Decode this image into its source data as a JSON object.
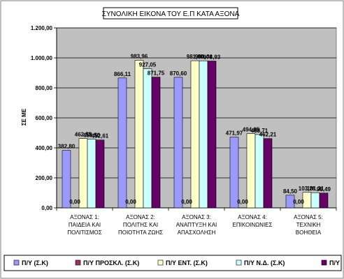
{
  "chart_data": {
    "type": "bar",
    "title": "ΣΥΝΟΛΙΚΗ ΕΙΚΟΝΑ ΤΟΥ Ε.Π ΚΑΤΑ ΑΞΟΝΑ",
    "ylabel": "ΣΕ ΜΕ",
    "xlabel": "",
    "ylim": [
      0,
      1200
    ],
    "yticks": [
      "0,00",
      "200,00",
      "400,00",
      "600,00",
      "800,00",
      "1.000,00",
      "1.200,00"
    ],
    "grid": true,
    "legend_position": "bottom",
    "categories": [
      [
        "ΑΞΟΝΑΣ 1:",
        "ΠΑΙΔΕΙΑ ΚΑΙ",
        "ΠΟΛΙΤΙΣΜΟΣ"
      ],
      [
        "ΑΞΟΝΑΣ 2:",
        "ΠΟΛΙΤΗΣ ΚΑΙ",
        "ΠΟΙΟΤΗΤΑ ΖΩΗΣ"
      ],
      [
        "ΑΞΟΝΑΣ 3:",
        "ΑΝΑΠΤΥΞΗ ΚΑΙ",
        "ΑΠΑΣΧΟΛΗΣΗ"
      ],
      [
        "ΑΞΟΝΑΣ 4:",
        "ΕΠΙΚΟΙΝΩΝΙΕΣ"
      ],
      [
        "ΑΞΟΝΑΣ 5:",
        "ΤΕΧΝΙΚΗ",
        "ΒΟΗΘΕΙΑ"
      ]
    ],
    "series": [
      {
        "name": "Π/Υ (Σ.Κ)",
        "color": "#9999ff",
        "values": [
          382.8,
          866.11,
          870.6,
          471.97,
          84.5
        ],
        "labels": [
          "382,80",
          "866,11",
          "870,60",
          "471,97",
          "84,50"
        ]
      },
      {
        "name": "Π/Υ ΠΡΟΣΚΛ. (Σ.Κ)",
        "color": "#993366",
        "values": [
          0,
          0,
          0,
          0,
          0
        ],
        "labels": [
          "0,00",
          "0,00",
          "0,00",
          "0,00",
          "0,00"
        ]
      },
      {
        "name": "Π/Υ ΕΝΤ. (Σ.Κ)",
        "color": "#ffffcc",
        "values": [
          462.55,
          983.96,
          981.0,
          494.85,
          103.28
        ],
        "labels": [
          "462,55",
          "983,96",
          "981,00",
          "494,85",
          "103,28"
        ]
      },
      {
        "name": "Π/Υ Ν.Δ. (Σ.Κ)",
        "color": "#ccffff",
        "values": [
          458.5,
          927.05,
          980.44,
          488.71,
          101.31
        ],
        "labels": [
          "458,50",
          "927,05",
          "980,44",
          "488,71",
          "101,31"
        ]
      },
      {
        "name": "Π/Υ",
        "color": "#660066",
        "values": [
          452.61,
          871.75,
          978.93,
          462.21,
          98.49
        ],
        "labels": [
          "452,61",
          "871,75",
          "978,93",
          "462,21",
          "98,49"
        ]
      }
    ]
  }
}
